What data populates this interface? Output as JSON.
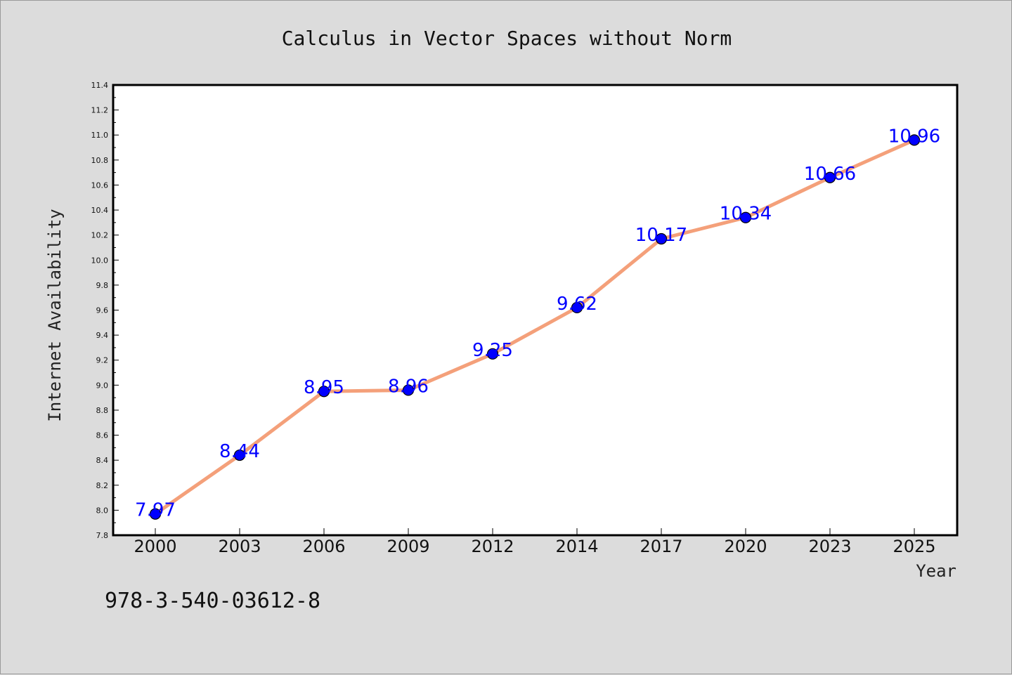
{
  "chart_data": {
    "type": "line",
    "title": "Calculus in Vector Spaces without Norm",
    "xlabel": "Year",
    "ylabel": "Internet Availability",
    "categories": [
      "2000",
      "2003",
      "2006",
      "2009",
      "2012",
      "2014",
      "2017",
      "2020",
      "2023",
      "2025"
    ],
    "series": [
      {
        "values": [
          7.97,
          8.44,
          8.95,
          8.96,
          9.25,
          9.62,
          10.17,
          10.34,
          10.66,
          10.96
        ]
      }
    ],
    "data_labels": [
      "7.97",
      "8.44",
      "8.95",
      "8.96",
      "9.25",
      "9.62",
      "10.17",
      "10.34",
      "10.66",
      "10.96"
    ],
    "ylim": [
      7.8,
      11.4
    ],
    "yticks": [
      "7.8",
      "8.0",
      "8.2",
      "8.4",
      "8.6",
      "8.8",
      "9.0",
      "9.2",
      "9.4",
      "9.6",
      "9.8",
      "10.0",
      "10.2",
      "10.4",
      "10.6",
      "10.8",
      "11.0",
      "11.2",
      "11.4"
    ],
    "grid": false,
    "colors": {
      "line": "#f4a07a",
      "marker": "#0000ff",
      "label": "#0000ff",
      "background": "#dcdcdc",
      "plot": "#ffffff"
    }
  },
  "footer": {
    "isbn": "978-3-540-03612-8"
  }
}
